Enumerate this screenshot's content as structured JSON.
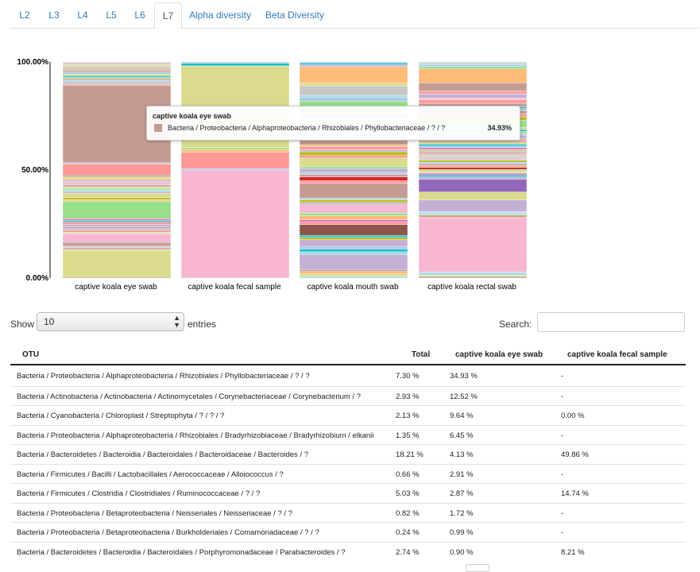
{
  "tabs": [
    "L2",
    "L3",
    "L4",
    "L5",
    "L6",
    "L7",
    "Alpha diversity",
    "Beta Diversity"
  ],
  "active_tab": "L7",
  "chart_data": {
    "type": "bar",
    "stacked": true,
    "percent": true,
    "categories": [
      "captive koala eye swab",
      "captive koala fecal sample",
      "captive koala mouth swab",
      "captive koala rectal swab"
    ],
    "y_ticks": [
      "0.00%",
      "50.00%",
      "100.00%"
    ],
    "ylim": [
      0,
      100
    ],
    "stacks": [
      [
        [
          0.4,
          "#c49c94"
        ],
        [
          0.5,
          "#bcbd22"
        ],
        [
          11.5,
          "#dbdb8d"
        ],
        [
          0.5,
          "#98df8a"
        ],
        [
          0.9,
          "#ff9896"
        ],
        [
          0.6,
          "#9edae5"
        ],
        [
          1.6,
          "#c49c94"
        ],
        [
          4.0,
          "#f7b6d2"
        ],
        [
          0.7,
          "#dbdb8d"
        ],
        [
          0.9,
          "#ff9896"
        ],
        [
          0.7,
          "#aec7e8"
        ],
        [
          0.8,
          "#c49c94"
        ],
        [
          1.0,
          "#c5b0d5"
        ],
        [
          1.1,
          "#ff9896"
        ],
        [
          0.7,
          "#17becf"
        ],
        [
          0.8,
          "#e377c2"
        ],
        [
          8.0,
          "#98df8a"
        ],
        [
          0.6,
          "#ffbb78"
        ],
        [
          0.9,
          "#bcbd22"
        ],
        [
          2.0,
          "#dbdb8d"
        ],
        [
          0.8,
          "#c5b0d5"
        ],
        [
          0.7,
          "#9edae5"
        ],
        [
          0.7,
          "#98df8a"
        ],
        [
          0.8,
          "#dbdb8d"
        ],
        [
          0.8,
          "#c49c94"
        ],
        [
          1.0,
          "#f7b6d2"
        ],
        [
          0.7,
          "#aec7e8"
        ],
        [
          0.7,
          "#ff9896"
        ],
        [
          1.2,
          "#dbdb8d"
        ],
        [
          0.8,
          "#c49c94"
        ],
        [
          5.0,
          "#ff9896"
        ],
        [
          0.5,
          "#aec7e8"
        ],
        [
          34.93,
          "#c49c94"
        ],
        [
          0.6,
          "#ffbb78"
        ],
        [
          0.9,
          "#c5b0d5"
        ],
        [
          0.7,
          "#9edae5"
        ],
        [
          0.7,
          "#ff9896"
        ],
        [
          0.8,
          "#98df8a"
        ],
        [
          0.6,
          "#17becf"
        ],
        [
          0.8,
          "#dbdb8d"
        ],
        [
          0.9,
          "#aec7e8"
        ],
        [
          0.7,
          "#c49c94"
        ],
        [
          0.6,
          "#ff9896"
        ],
        [
          0.8,
          "#98df8a"
        ],
        [
          0.7,
          "#f7b6d2"
        ],
        [
          0.8,
          "#dbdb8d"
        ],
        [
          0.6,
          "#c5b0d5"
        ],
        [
          0.3,
          "#ffbb78"
        ]
      ],
      [
        [
          49.86,
          "#f7b6d2"
        ],
        [
          0.8,
          "#aec7e8"
        ],
        [
          7.6,
          "#ff9896"
        ],
        [
          1.3,
          "#ffbb78"
        ],
        [
          0.9,
          "#98df8a"
        ],
        [
          14.74,
          "#dbdb8d"
        ],
        [
          0.6,
          "#c49c94"
        ],
        [
          0.4,
          "#9edae5"
        ],
        [
          1.1,
          "#aec7e8"
        ],
        [
          0.8,
          "#dbdb8d"
        ],
        [
          0.8,
          "#98df8a"
        ],
        [
          19.3,
          "#dbdb8d"
        ],
        [
          1.2,
          "#17becf"
        ],
        [
          0.6,
          "#aec7e8"
        ]
      ],
      [
        [
          0.6,
          "#9edae5"
        ],
        [
          0.9,
          "#dbdb8d"
        ],
        [
          0.9,
          "#ffbb78"
        ],
        [
          0.7,
          "#c49c94"
        ],
        [
          5.5,
          "#c5b0d5"
        ],
        [
          1.0,
          "#9edae5"
        ],
        [
          1.0,
          "#17becf"
        ],
        [
          0.8,
          "#aec7e8"
        ],
        [
          2.6,
          "#c5b0d5"
        ],
        [
          0.9,
          "#bcbd22"
        ],
        [
          0.7,
          "#17becf"
        ],
        [
          4.0,
          "#8c564b"
        ],
        [
          0.8,
          "#ff9896"
        ],
        [
          0.9,
          "#e377c2"
        ],
        [
          1.5,
          "#ffbb78"
        ],
        [
          1.0,
          "#98df8a"
        ],
        [
          3.0,
          "#f7b6d2"
        ],
        [
          0.8,
          "#c5b0d5"
        ],
        [
          1.0,
          "#bcbd22"
        ],
        [
          0.6,
          "#9edae5"
        ],
        [
          5.5,
          "#c49c94"
        ],
        [
          0.9,
          "#ff9896"
        ],
        [
          1.4,
          "#d62728"
        ],
        [
          0.9,
          "#c49c94"
        ],
        [
          0.7,
          "#aec7e8"
        ],
        [
          1.5,
          "#c5b0d5"
        ],
        [
          0.8,
          "#98df8a"
        ],
        [
          3.0,
          "#dbdb8d"
        ],
        [
          0.9,
          "#ff9896"
        ],
        [
          1.4,
          "#bcbd22"
        ],
        [
          0.8,
          "#c5b0d5"
        ],
        [
          1.0,
          "#ff9896"
        ],
        [
          0.7,
          "#ffbb78"
        ],
        [
          2.5,
          "#c49c94"
        ],
        [
          0.6,
          "#9edae5"
        ],
        [
          0.9,
          "#aec7e8"
        ],
        [
          0.7,
          "#dbdb8d"
        ],
        [
          1.0,
          "#ff9896"
        ],
        [
          0.8,
          "#98df8a"
        ],
        [
          0.7,
          "#17becf"
        ],
        [
          0.9,
          "#f7b6d2"
        ],
        [
          1.1,
          "#dbdb8d"
        ],
        [
          0.8,
          "#aec7e8"
        ],
        [
          1.0,
          "#c49c94"
        ],
        [
          1.0,
          "#ffbb78"
        ],
        [
          4.0,
          "#98df8a"
        ],
        [
          1.3,
          "#aec7e8"
        ],
        [
          0.8,
          "#9edae5"
        ],
        [
          3.5,
          "#c7c7c7"
        ],
        [
          1.0,
          "#dbdb8d"
        ],
        [
          6.0,
          "#ffbb78"
        ],
        [
          0.7,
          "#c5b0d5"
        ],
        [
          0.6,
          "#17becf"
        ],
        [
          0.4,
          "#aec7e8"
        ]
      ],
      [
        [
          0.7,
          "#c49c94"
        ],
        [
          0.6,
          "#dbdb8d"
        ],
        [
          0.8,
          "#9edae5"
        ],
        [
          0.6,
          "#aec7e8"
        ],
        [
          23.0,
          "#f7b6d2"
        ],
        [
          0.6,
          "#ff9896"
        ],
        [
          0.8,
          "#c49c94"
        ],
        [
          0.5,
          "#98df8a"
        ],
        [
          0.6,
          "#9edae5"
        ],
        [
          0.5,
          "#aec7e8"
        ],
        [
          5.0,
          "#c5b0d5"
        ],
        [
          3.4,
          "#dbdb8d"
        ],
        [
          5.5,
          "#9467bd"
        ],
        [
          1.0,
          "#c5b0d5"
        ],
        [
          0.8,
          "#17becf"
        ],
        [
          0.8,
          "#e377c2"
        ],
        [
          0.9,
          "#dbdb8d"
        ],
        [
          0.7,
          "#98df8a"
        ],
        [
          0.9,
          "#d62728"
        ],
        [
          0.7,
          "#ff9896"
        ],
        [
          0.8,
          "#c49c94"
        ],
        [
          0.7,
          "#9edae5"
        ],
        [
          0.9,
          "#bcbd22"
        ],
        [
          0.8,
          "#f7b6d2"
        ],
        [
          0.7,
          "#aec7e8"
        ],
        [
          0.8,
          "#dbdb8d"
        ],
        [
          0.7,
          "#c5b0d5"
        ],
        [
          0.9,
          "#ff9896"
        ],
        [
          0.7,
          "#98df8a"
        ],
        [
          0.8,
          "#e377c2"
        ],
        [
          0.7,
          "#aec7e8"
        ],
        [
          0.8,
          "#17becf"
        ],
        [
          0.9,
          "#dbdb8d"
        ],
        [
          0.7,
          "#c49c94"
        ],
        [
          0.8,
          "#ff9896"
        ],
        [
          1.5,
          "#c5b0d5"
        ],
        [
          0.7,
          "#aec7e8"
        ],
        [
          0.9,
          "#98df8a"
        ],
        [
          0.8,
          "#17becf"
        ],
        [
          1.0,
          "#dbdb8d"
        ],
        [
          3.0,
          "#98df8a"
        ],
        [
          1.5,
          "#bcbd22"
        ],
        [
          1.2,
          "#ff9896"
        ],
        [
          1.5,
          "#c49c94"
        ],
        [
          0.8,
          "#aec7e8"
        ],
        [
          0.7,
          "#17becf"
        ],
        [
          1.6,
          "#c49c94"
        ],
        [
          1.5,
          "#ff9896"
        ],
        [
          0.8,
          "#f7b6d2"
        ],
        [
          1.8,
          "#c5b0d5"
        ],
        [
          1.2,
          "#ff9896"
        ],
        [
          3.5,
          "#c49c94"
        ],
        [
          6.0,
          "#ffbb78"
        ],
        [
          1.0,
          "#98df8a"
        ],
        [
          0.8,
          "#aec7e8"
        ],
        [
          0.6,
          "#9edae5"
        ],
        [
          0.6,
          "#c7c7c7"
        ]
      ]
    ]
  },
  "tooltip": {
    "title": "captive koala eye swab",
    "label": "Bacteria / Proteobacteria / Alphaproteobacteria / Rhizobiales / Phyllobacteriaceae / ? / ?",
    "value": "34.93%",
    "color": "#c49c94"
  },
  "controls": {
    "show_label": "Show",
    "page_size": "10",
    "entries_label": "entries",
    "search_label": "Search:"
  },
  "table": {
    "headers": [
      "OTU",
      "Total",
      "captive koala eye swab",
      "captive koala fecal sample"
    ],
    "rows": [
      [
        "Bacteria / Proteobacteria / Alphaproteobacteria / Rhizobiales / Phyllobacteriaceae / ? / ?",
        "7.30 %",
        "34.93 %",
        "-"
      ],
      [
        "Bacteria / Actinobacteria / Actinobacteria / Actinomycetales / Corynebacteriaceae / Corynebacterium / ?",
        "2.93 %",
        "12.52 %",
        "-"
      ],
      [
        "Bacteria / Cyanobacteria / Chloroplast / Streptophyta / ? / ? / ?",
        "2.13 %",
        "9.64 %",
        "0.00 %"
      ],
      [
        "Bacteria / Proteobacteria / Alphaproteobacteria / Rhizobiales / Bradyrhizobiaceae / Bradyrhizobium / elkanii",
        "1.35 %",
        "6.45 %",
        "-"
      ],
      [
        "Bacteria / Bacteroidetes / Bacteroidia / Bacteroidales / Bacteroidaceae / Bacteroides / ?",
        "18.21 %",
        "4.13 %",
        "49.86 %"
      ],
      [
        "Bacteria / Firmicutes / Bacilli / Lactobacillales / Aerococcaceae / Alloiococcus / ?",
        "0.66 %",
        "2.91 %",
        "-"
      ],
      [
        "Bacteria / Firmicutes / Clostridia / Clostridiales / Ruminococcaceae / ? / ?",
        "5.03 %",
        "2.87 %",
        "14.74 %"
      ],
      [
        "Bacteria / Proteobacteria / Betaproteobacteria / Neisseriales / Neisseriaceae / ? / ?",
        "0.82 %",
        "1.72 %",
        "-"
      ],
      [
        "Bacteria / Proteobacteria / Betaproteobacteria / Burkholderiales / Comamonadaceae / ? / ?",
        "0.24 %",
        "0.99 %",
        "-"
      ],
      [
        "Bacteria / Bacteroidetes / Bacteroidia / Bacteroidales / Porphyromonadaceae / Parabacteroides / ?",
        "2.74 %",
        "0.90 %",
        "8.21 %"
      ]
    ]
  }
}
